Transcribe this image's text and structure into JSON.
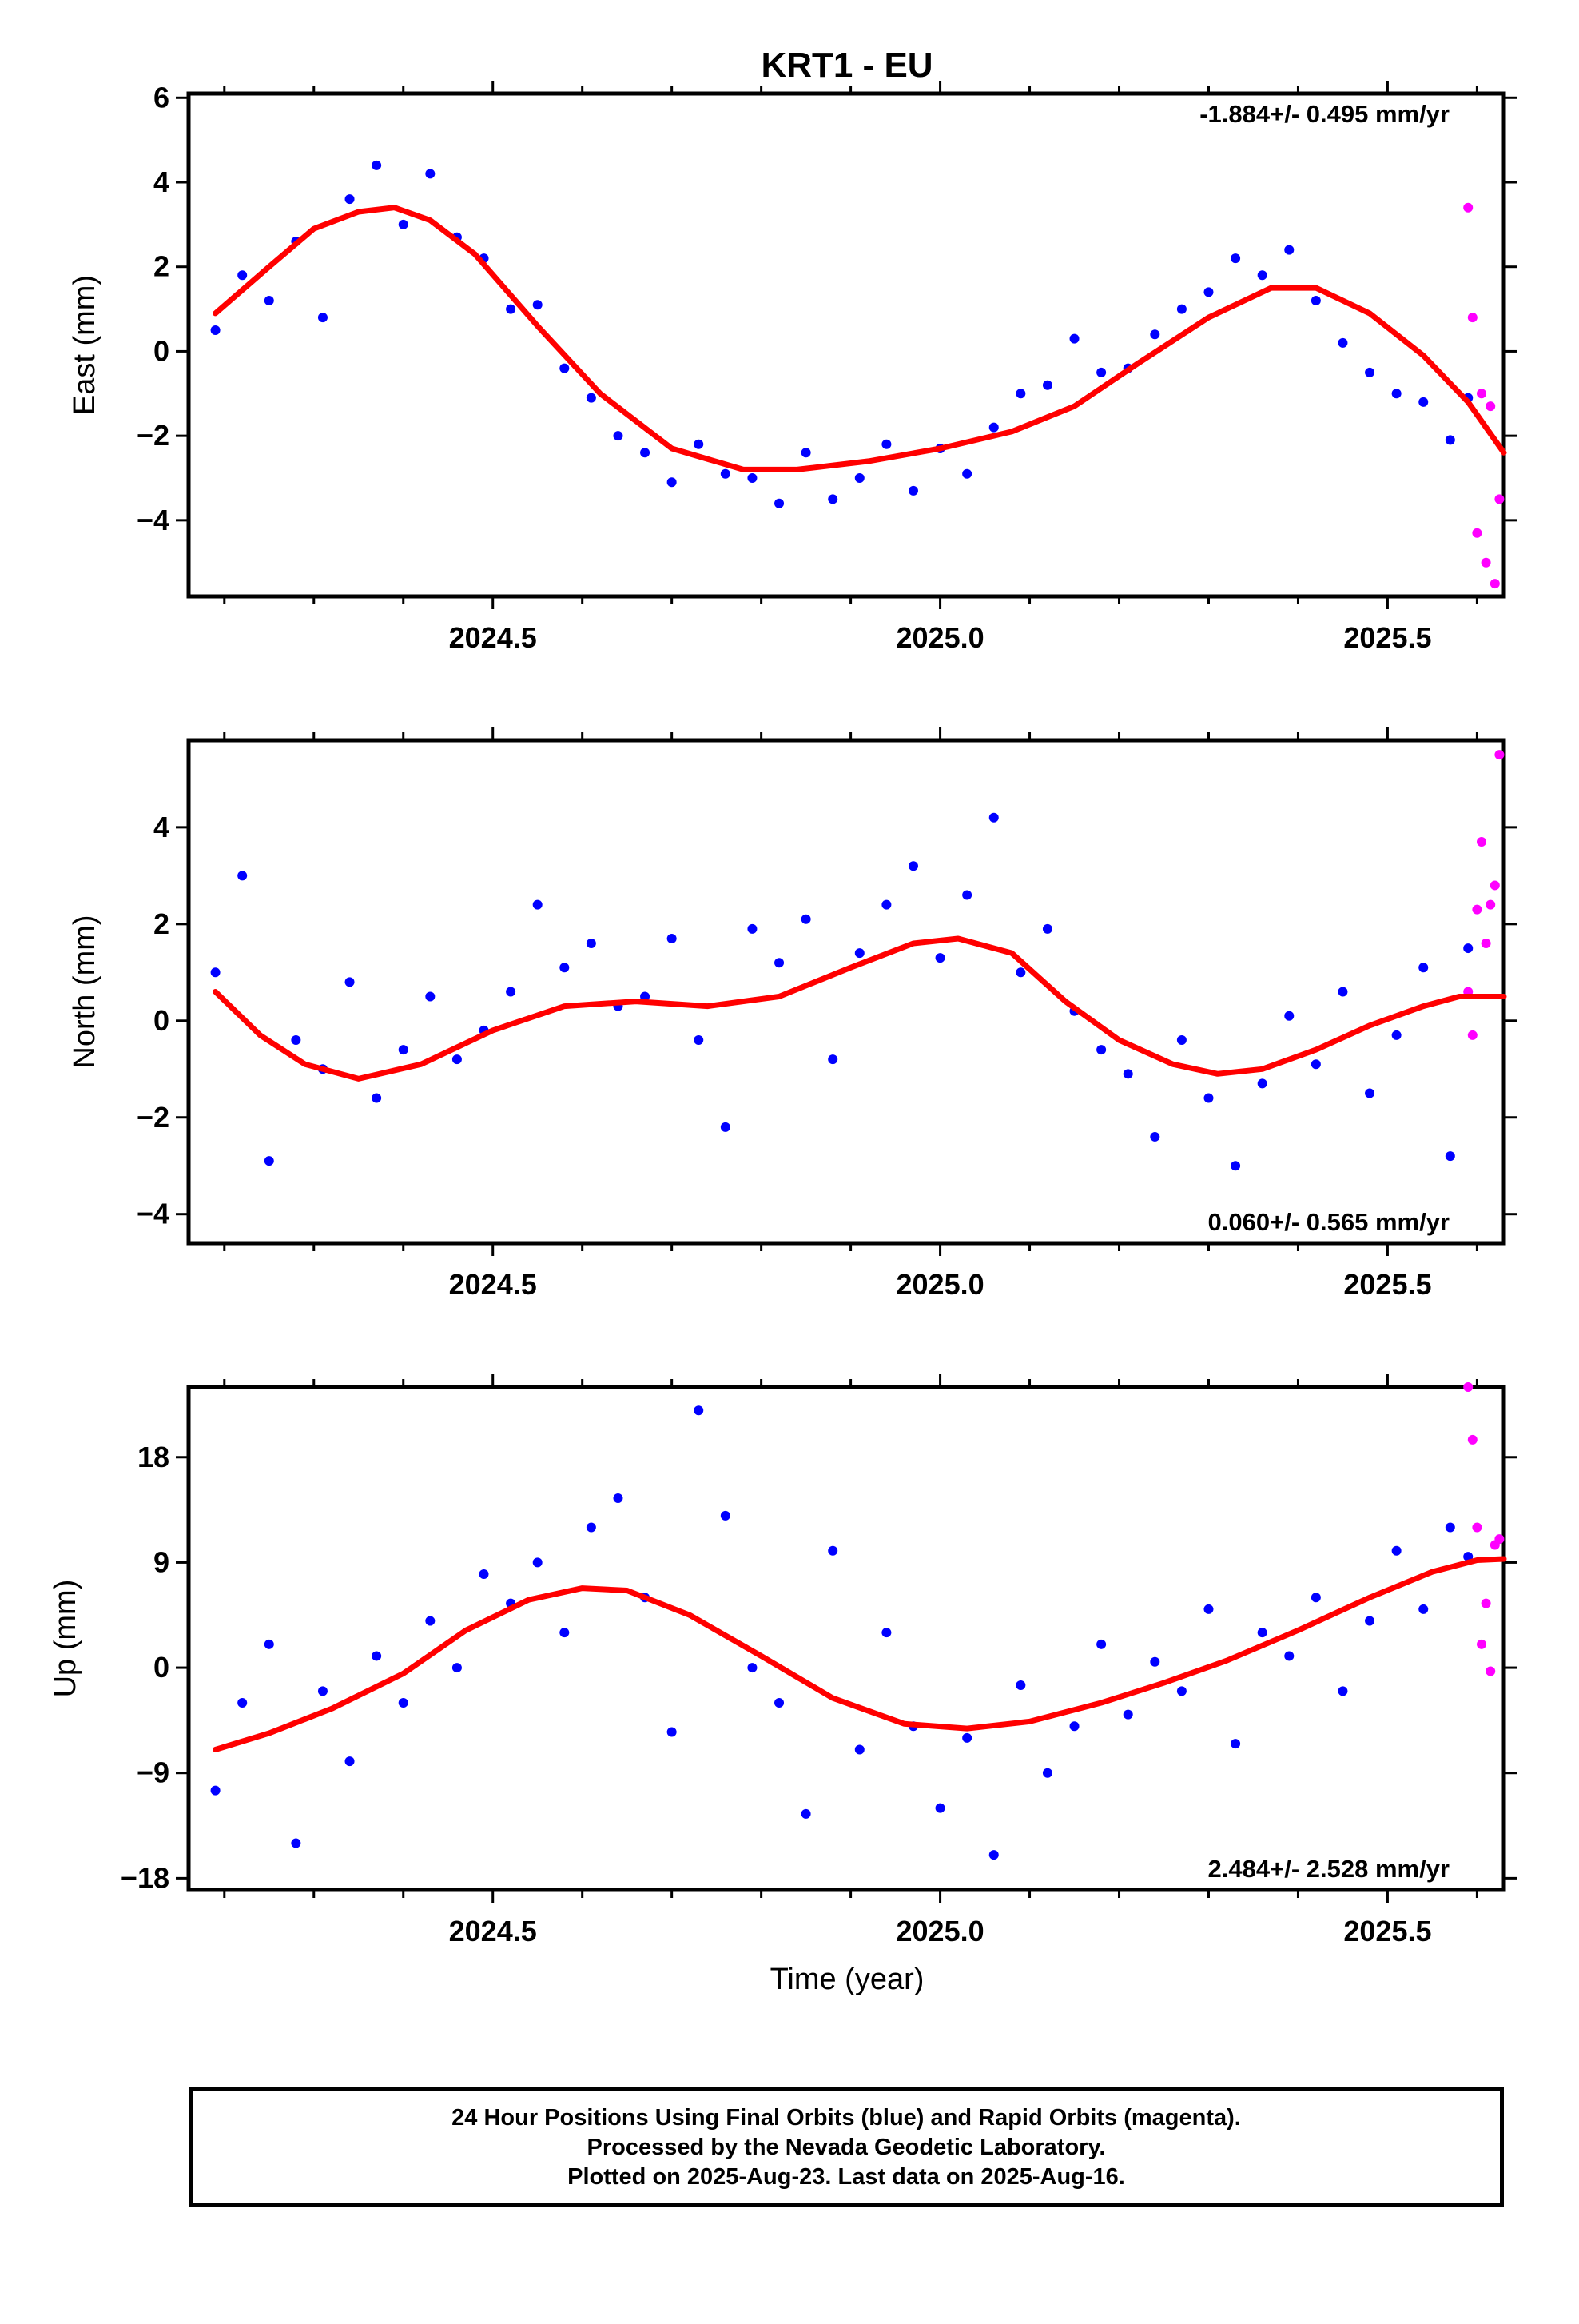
{
  "title": "KRT1 - EU",
  "xlabel": "Time (year)",
  "footer": {
    "line1": "24 Hour Positions Using Final Orbits (blue) and Rapid Orbits (magenta).",
    "line2": "Processed by the Nevada Geodetic Laboratory.",
    "line3": "Plotted on 2025-Aug-23. Last data on 2025-Aug-16."
  },
  "colors": {
    "final": "#0000ff",
    "rapid": "#ff00ff",
    "fit": "#ff0000",
    "axes": "#000000"
  },
  "chart_data": [
    {
      "type": "scatter",
      "ylabel": "East (mm)",
      "rate": "-1.884+/- 0.495 mm/yr",
      "xlim": [
        2024.16,
        2025.63
      ],
      "ylim": [
        -5.8,
        6.1
      ],
      "xticks": [
        2024.5,
        2025.0,
        2025.5
      ],
      "xticklabels": [
        "2024.5",
        "2025.0",
        "2025.5"
      ],
      "yticks": [
        -4,
        -2,
        0,
        2,
        4,
        6
      ],
      "yticklabels": [
        "−4",
        "−2",
        "0",
        "2",
        "4",
        "6"
      ],
      "fit": {
        "name": "fit",
        "x": [
          2024.19,
          2024.25,
          2024.3,
          2024.35,
          2024.39,
          2024.43,
          2024.48,
          2024.55,
          2024.62,
          2024.7,
          2024.78,
          2024.84,
          2024.92,
          2025.0,
          2025.08,
          2025.15,
          2025.22,
          2025.3,
          2025.37,
          2025.42,
          2025.48,
          2025.54,
          2025.59,
          2025.63
        ],
        "y": [
          0.9,
          2.0,
          2.9,
          3.3,
          3.4,
          3.1,
          2.3,
          0.6,
          -1.0,
          -2.3,
          -2.8,
          -2.8,
          -2.6,
          -2.3,
          -1.9,
          -1.3,
          -0.3,
          0.8,
          1.5,
          1.5,
          0.9,
          -0.1,
          -1.2,
          -2.4
        ]
      },
      "series": [
        {
          "name": "final",
          "x": [
            2024.19,
            2024.22,
            2024.25,
            2024.28,
            2024.31,
            2024.34,
            2024.37,
            2024.4,
            2024.43,
            2024.46,
            2024.49,
            2024.52,
            2024.55,
            2024.58,
            2024.61,
            2024.64,
            2024.67,
            2024.7,
            2024.73,
            2024.76,
            2024.79,
            2024.82,
            2024.85,
            2024.88,
            2024.91,
            2024.94,
            2024.97,
            2025.0,
            2025.03,
            2025.06,
            2025.09,
            2025.12,
            2025.15,
            2025.18,
            2025.21,
            2025.24,
            2025.27,
            2025.3,
            2025.33,
            2025.36,
            2025.39,
            2025.42,
            2025.45,
            2025.48,
            2025.51,
            2025.54,
            2025.57,
            2025.59
          ],
          "y": [
            0.5,
            1.8,
            1.2,
            2.6,
            0.8,
            3.6,
            4.4,
            3.0,
            4.2,
            2.7,
            2.2,
            1.0,
            1.1,
            -0.4,
            -1.1,
            -2.0,
            -2.4,
            -3.1,
            -2.2,
            -2.9,
            -3.0,
            -3.6,
            -2.4,
            -3.5,
            -3.0,
            -2.2,
            -3.3,
            -2.3,
            -2.9,
            -1.8,
            -1.0,
            -0.8,
            0.3,
            -0.5,
            -0.4,
            0.4,
            1.0,
            1.4,
            2.2,
            1.8,
            2.4,
            1.2,
            0.2,
            -0.5,
            -1.0,
            -1.2,
            -2.1,
            -1.1
          ]
        },
        {
          "name": "rapid",
          "x": [
            2025.59,
            2025.595,
            2025.6,
            2025.605,
            2025.61,
            2025.615,
            2025.62,
            2025.625
          ],
          "y": [
            3.4,
            0.8,
            -4.3,
            -1.0,
            -5.0,
            -1.3,
            -5.5,
            -3.5
          ]
        }
      ]
    },
    {
      "type": "scatter",
      "ylabel": "North (mm)",
      "rate": "0.060+/- 0.565 mm/yr",
      "xlim": [
        2024.16,
        2025.63
      ],
      "ylim": [
        -4.6,
        5.8
      ],
      "xticks": [
        2024.5,
        2025.0,
        2025.5
      ],
      "xticklabels": [
        "2024.5",
        "2025.0",
        "2025.5"
      ],
      "yticks": [
        -4,
        -2,
        0,
        2,
        4
      ],
      "yticklabels": [
        "−4",
        "−2",
        "0",
        "2",
        "4"
      ],
      "fit": {
        "name": "fit",
        "x": [
          2024.19,
          2024.24,
          2024.29,
          2024.35,
          2024.42,
          2024.5,
          2024.58,
          2024.66,
          2024.74,
          2024.82,
          2024.9,
          2024.97,
          2025.02,
          2025.08,
          2025.14,
          2025.2,
          2025.26,
          2025.31,
          2025.36,
          2025.42,
          2025.48,
          2025.54,
          2025.58,
          2025.63
        ],
        "y": [
          0.6,
          -0.3,
          -0.9,
          -1.2,
          -0.9,
          -0.2,
          0.3,
          0.4,
          0.3,
          0.5,
          1.1,
          1.6,
          1.7,
          1.4,
          0.4,
          -0.4,
          -0.9,
          -1.1,
          -1.0,
          -0.6,
          -0.1,
          0.3,
          0.5,
          0.5
        ]
      },
      "series": [
        {
          "name": "final",
          "x": [
            2024.19,
            2024.22,
            2024.25,
            2024.28,
            2024.31,
            2024.34,
            2024.37,
            2024.4,
            2024.43,
            2024.46,
            2024.49,
            2024.52,
            2024.55,
            2024.58,
            2024.61,
            2024.64,
            2024.67,
            2024.7,
            2024.73,
            2024.76,
            2024.79,
            2024.82,
            2024.85,
            2024.88,
            2024.91,
            2024.94,
            2024.97,
            2025.0,
            2025.03,
            2025.06,
            2025.09,
            2025.12,
            2025.15,
            2025.18,
            2025.21,
            2025.24,
            2025.27,
            2025.3,
            2025.33,
            2025.36,
            2025.39,
            2025.42,
            2025.45,
            2025.48,
            2025.51,
            2025.54,
            2025.57,
            2025.59
          ],
          "y": [
            1.0,
            3.0,
            -2.9,
            -0.4,
            -1.0,
            0.8,
            -1.6,
            -0.6,
            0.5,
            -0.8,
            -0.2,
            0.6,
            2.4,
            1.1,
            1.6,
            0.3,
            0.5,
            1.7,
            -0.4,
            -2.2,
            1.9,
            1.2,
            2.1,
            -0.8,
            1.4,
            2.4,
            3.2,
            1.3,
            2.6,
            4.2,
            1.0,
            1.9,
            0.2,
            -0.6,
            -1.1,
            -2.4,
            -0.4,
            -1.6,
            -3.0,
            -1.3,
            0.1,
            -0.9,
            0.6,
            -1.5,
            -0.3,
            1.1,
            -2.8,
            1.5
          ]
        },
        {
          "name": "rapid",
          "x": [
            2025.59,
            2025.595,
            2025.6,
            2025.605,
            2025.61,
            2025.615,
            2025.62,
            2025.625
          ],
          "y": [
            0.6,
            -0.3,
            2.3,
            3.7,
            1.6,
            2.4,
            2.8,
            5.5
          ]
        }
      ]
    },
    {
      "type": "scatter",
      "ylabel": "Up (mm)",
      "rate": "2.484+/- 2.528 mm/yr",
      "xlim": [
        2024.16,
        2025.63
      ],
      "ylim": [
        -19,
        24
      ],
      "xticks": [
        2024.5,
        2025.0,
        2025.5
      ],
      "xticklabels": [
        "2024.5",
        "2025.0",
        "2025.5"
      ],
      "yticks": [
        -18,
        -9,
        0,
        9,
        18
      ],
      "yticklabels": [
        "−18",
        "−9",
        "0",
        "9",
        "18"
      ],
      "fit": {
        "name": "fit",
        "x": [
          2024.19,
          2024.25,
          2024.32,
          2024.4,
          2024.47,
          2024.54,
          2024.6,
          2024.65,
          2024.72,
          2024.8,
          2024.88,
          2024.96,
          2025.03,
          2025.1,
          2025.18,
          2025.25,
          2025.32,
          2025.4,
          2025.48,
          2025.55,
          2025.6,
          2025.63
        ],
        "y": [
          -7.0,
          -5.6,
          -3.5,
          -0.5,
          3.2,
          5.8,
          6.8,
          6.6,
          4.5,
          1.0,
          -2.6,
          -4.8,
          -5.2,
          -4.6,
          -3.0,
          -1.3,
          0.6,
          3.2,
          6.0,
          8.2,
          9.2,
          9.3
        ]
      },
      "series": [
        {
          "name": "final",
          "x": [
            2024.19,
            2024.22,
            2024.25,
            2024.28,
            2024.31,
            2024.34,
            2024.37,
            2024.4,
            2024.43,
            2024.46,
            2024.49,
            2024.52,
            2024.55,
            2024.58,
            2024.61,
            2024.64,
            2024.67,
            2024.7,
            2024.73,
            2024.76,
            2024.79,
            2024.82,
            2024.85,
            2024.88,
            2024.91,
            2024.94,
            2024.97,
            2025.0,
            2025.03,
            2025.06,
            2025.09,
            2025.12,
            2025.15,
            2025.18,
            2025.21,
            2025.24,
            2025.27,
            2025.3,
            2025.33,
            2025.36,
            2025.39,
            2025.42,
            2025.45,
            2025.48,
            2025.51,
            2025.54,
            2025.57,
            2025.59
          ],
          "y": [
            -10.5,
            -3.0,
            2.0,
            -15.0,
            -2.0,
            -8.0,
            1.0,
            -3.0,
            4.0,
            0.0,
            8.0,
            5.5,
            9.0,
            3.0,
            12.0,
            14.5,
            6.0,
            -5.5,
            22.0,
            13.0,
            0.0,
            -3.0,
            -12.5,
            10.0,
            -7.0,
            3.0,
            -5.0,
            -12.0,
            -6.0,
            -16.0,
            -1.5,
            -9.0,
            -5.0,
            2.0,
            -4.0,
            0.5,
            -2.0,
            5.0,
            -6.5,
            3.0,
            1.0,
            6.0,
            -2.0,
            4.0,
            10.0,
            5.0,
            12.0,
            9.5
          ]
        },
        {
          "name": "rapid",
          "x": [
            2025.59,
            2025.595,
            2025.6,
            2025.605,
            2025.61,
            2025.615,
            2025.62,
            2025.625
          ],
          "y": [
            24.0,
            19.5,
            12.0,
            2.0,
            5.5,
            -0.3,
            10.5,
            11.0
          ]
        }
      ]
    }
  ]
}
